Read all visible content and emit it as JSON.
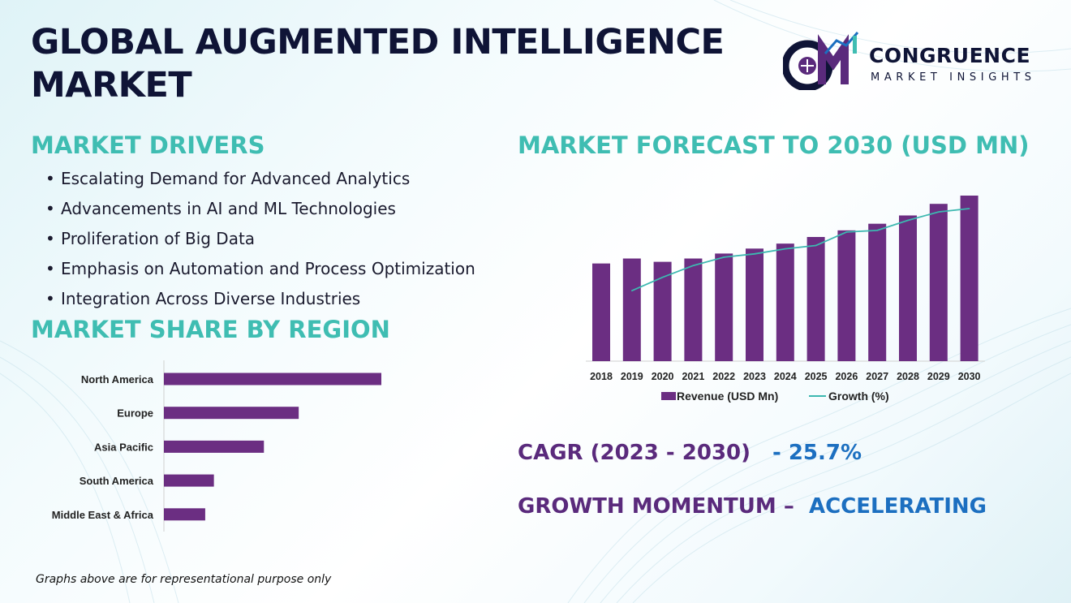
{
  "header": {
    "title": "GLOBAL AUGMENTED INTELLIGENCE MARKET"
  },
  "logo": {
    "name": "CONGRUENCE",
    "subtitle": "MARKET INSIGHTS",
    "icon": "cm-logo-icon"
  },
  "drivers": {
    "heading": "MARKET DRIVERS",
    "items": [
      "Escalating Demand for Advanced Analytics",
      "Advancements in AI and ML Technologies",
      "Proliferation of Big Data",
      "Emphasis on Automation and Process Optimization",
      "Integration Across Diverse Industries"
    ]
  },
  "region": {
    "heading": "MARKET SHARE BY REGION"
  },
  "forecast": {
    "heading": "MARKET FORECAST TO 2030 (USD MN)"
  },
  "cagr": {
    "label": "CAGR (2023 - 2030)",
    "value": "- 25.7%"
  },
  "growth_momentum": {
    "label": "GROWTH MOMENTUM –",
    "value": "ACCELERATING"
  },
  "footnote": "Graphs above are for representational purpose only",
  "colors": {
    "bar": "#6b2e82",
    "line": "#3cb8b0",
    "heading": "#3fbdb2",
    "title": "#0f1436",
    "accent_blue": "#1c6fc0"
  },
  "chart_data": [
    {
      "type": "bar",
      "orientation": "horizontal",
      "categories": [
        "North America",
        "Europe",
        "Asia Pacific",
        "South America",
        "Middle East & Africa"
      ],
      "values": [
        100,
        62,
        46,
        23,
        19
      ],
      "grid": false
    },
    {
      "type": "bar",
      "categories": [
        "2018",
        "2019",
        "2020",
        "2021",
        "2022",
        "2023",
        "2024",
        "2025",
        "2026",
        "2027",
        "2028",
        "2029",
        "2030"
      ],
      "series": [
        {
          "name": "Revenue (USD Mn)",
          "type": "bar",
          "values": [
            59,
            62,
            60,
            62,
            65,
            68,
            71,
            75,
            79,
            83,
            88,
            95,
            100
          ]
        },
        {
          "name": "Growth (%)",
          "type": "line",
          "values": [
            null,
            42,
            50,
            57,
            62,
            64,
            67,
            69,
            77,
            78,
            84,
            89,
            91
          ]
        }
      ],
      "legend": "bottom",
      "grid": false
    }
  ]
}
